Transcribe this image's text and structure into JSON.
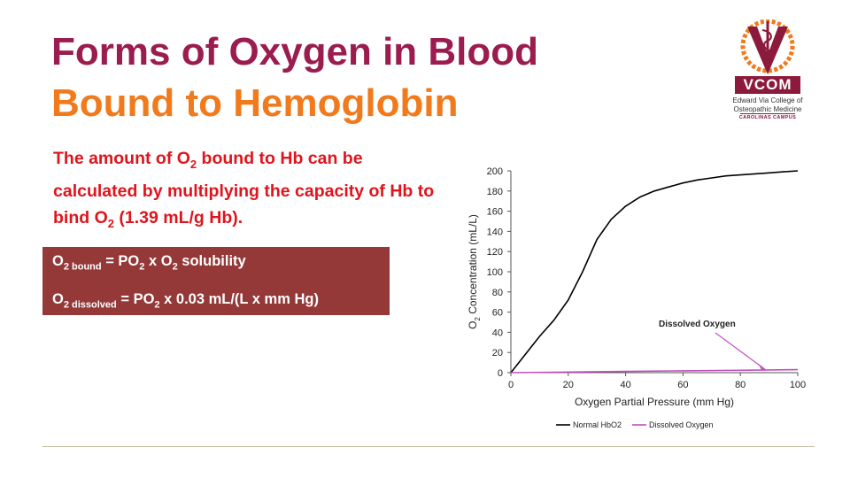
{
  "slide": {
    "title_line1": "Forms of Oxygen in Blood",
    "title_line2": "Bound to Hemoglobin",
    "desc": {
      "p1": "The amount of O",
      "s1": "2",
      "p2": " bound to Hb can be calculated  by multiplying the capacity of Hb to bind O",
      "s2": "2",
      "p3": " (1.39 mL/g Hb)."
    },
    "formula1": {
      "a": "O",
      "a_sub": "2 bound",
      "b": " = PO",
      "b_sub": "2",
      "c": " x O",
      "c_sub": "2",
      "d": " solubility"
    },
    "formula2": {
      "a": "O",
      "a_sub": "2 dissolved",
      "b": " = PO",
      "b_sub": "2",
      "c": " x 0.03 mL/(L x mm Hg)"
    }
  },
  "logo": {
    "name": "VCOM",
    "line1": "Edward Via College of",
    "line2": "Osteopathic Medicine",
    "line3": "CAROLINAS CAMPUS"
  },
  "colors": {
    "title1": "#9b1c4e",
    "title2": "#f07a1c",
    "desc": "#e0141c",
    "box": "#953838",
    "hbo2_line": "#000000",
    "dissolved_line": "#c04fc0",
    "arrow": "#c04fc0"
  },
  "chart_data": {
    "type": "line",
    "xlabel": "Oxygen Partial Pressure (mm Hg)",
    "ylabel_parts": [
      "O",
      "2",
      " Concentration (mL/L)"
    ],
    "xlim": [
      0,
      100
    ],
    "ylim": [
      0,
      200
    ],
    "x_ticks": [
      0,
      20,
      40,
      60,
      80,
      100
    ],
    "y_ticks": [
      0,
      20,
      40,
      60,
      80,
      100,
      120,
      140,
      160,
      180,
      200
    ],
    "grid": false,
    "legend_position": "bottom",
    "annotation": {
      "text": "Dissolved Oxygen",
      "points_to": [
        89,
        3
      ]
    },
    "series": [
      {
        "name": "Normal HbO2",
        "x": [
          0,
          5,
          10,
          15,
          20,
          25,
          30,
          35,
          40,
          45,
          50,
          55,
          60,
          65,
          70,
          75,
          80,
          85,
          90,
          95,
          100
        ],
        "y": [
          0,
          18,
          36,
          52,
          72,
          100,
          132,
          152,
          165,
          174,
          180,
          184,
          188,
          191,
          193,
          195,
          196,
          197,
          198,
          199,
          200
        ]
      },
      {
        "name": "Dissolved Oxygen",
        "x": [
          0,
          20,
          40,
          60,
          80,
          100
        ],
        "y": [
          0,
          0.6,
          1.2,
          1.8,
          2.4,
          3.0
        ]
      }
    ]
  }
}
